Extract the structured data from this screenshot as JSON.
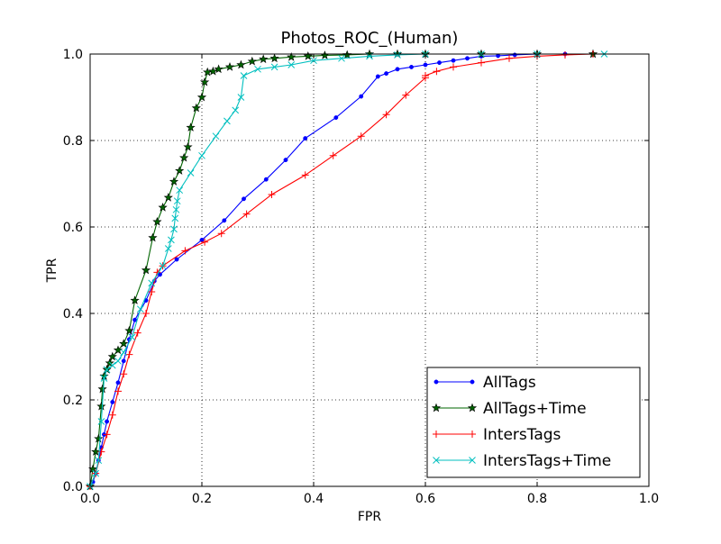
{
  "chart_data": {
    "type": "line",
    "title": "Photos_ROC_(Human)",
    "xlabel": "FPR",
    "ylabel": "TPR",
    "xlim": [
      0,
      1
    ],
    "ylim": [
      0,
      1
    ],
    "xticks": [
      0,
      0.2,
      0.4,
      0.6,
      0.8,
      1.0
    ],
    "yticks": [
      0,
      0.2,
      0.4,
      0.6,
      0.8,
      1.0
    ],
    "xtick_labels": [
      "0.0",
      "0.2",
      "0.4",
      "0.6",
      "0.8",
      "1.0"
    ],
    "ytick_labels": [
      "0.0",
      "0.2",
      "0.4",
      "0.6",
      "0.8",
      "1.0"
    ],
    "grid": true,
    "legend_position": "lower-right",
    "series": [
      {
        "name": "AllTags",
        "color": "#0000ff",
        "marker": "dot",
        "x": [
          0,
          0.005,
          0.01,
          0.015,
          0.02,
          0.025,
          0.03,
          0.04,
          0.05,
          0.06,
          0.07,
          0.08,
          0.1,
          0.115,
          0.125,
          0.155,
          0.2,
          0.24,
          0.275,
          0.315,
          0.35,
          0.385,
          0.44,
          0.485,
          0.515,
          0.53,
          0.55,
          0.575,
          0.6,
          0.625,
          0.65,
          0.675,
          0.7,
          0.73,
          0.76,
          0.8,
          0.85,
          0.9
        ],
        "y": [
          0,
          0.01,
          0.03,
          0.06,
          0.09,
          0.12,
          0.15,
          0.195,
          0.24,
          0.29,
          0.34,
          0.385,
          0.43,
          0.475,
          0.49,
          0.525,
          0.57,
          0.615,
          0.665,
          0.71,
          0.755,
          0.805,
          0.853,
          0.902,
          0.948,
          0.955,
          0.965,
          0.97,
          0.975,
          0.98,
          0.985,
          0.99,
          0.995,
          0.996,
          0.998,
          1.0,
          1.0,
          1.0
        ]
      },
      {
        "name": "AllTags+Time",
        "color": "#006400",
        "marker": "star",
        "x": [
          0,
          0.005,
          0.01,
          0.015,
          0.02,
          0.022,
          0.025,
          0.03,
          0.035,
          0.04,
          0.05,
          0.06,
          0.07,
          0.08,
          0.1,
          0.112,
          0.12,
          0.13,
          0.14,
          0.15,
          0.16,
          0.168,
          0.175,
          0.18,
          0.19,
          0.2,
          0.205,
          0.21,
          0.22,
          0.23,
          0.25,
          0.27,
          0.29,
          0.31,
          0.33,
          0.36,
          0.39,
          0.42,
          0.46,
          0.5,
          0.55,
          0.6,
          0.7,
          0.8,
          0.9
        ],
        "y": [
          0,
          0.04,
          0.08,
          0.11,
          0.185,
          0.225,
          0.255,
          0.27,
          0.285,
          0.3,
          0.315,
          0.33,
          0.36,
          0.43,
          0.5,
          0.575,
          0.612,
          0.645,
          0.668,
          0.705,
          0.73,
          0.76,
          0.785,
          0.83,
          0.875,
          0.9,
          0.935,
          0.958,
          0.96,
          0.965,
          0.97,
          0.975,
          0.983,
          0.988,
          0.99,
          0.993,
          0.995,
          0.997,
          0.998,
          1.0,
          1.0,
          1.0,
          1.0,
          1.0,
          1.0
        ]
      },
      {
        "name": "IntersTags",
        "color": "#ff0000",
        "marker": "plus",
        "x": [
          0,
          0.01,
          0.02,
          0.03,
          0.04,
          0.05,
          0.06,
          0.07,
          0.085,
          0.1,
          0.11,
          0.12,
          0.13,
          0.17,
          0.205,
          0.235,
          0.28,
          0.325,
          0.385,
          0.435,
          0.485,
          0.53,
          0.565,
          0.6,
          0.6,
          0.62,
          0.65,
          0.7,
          0.75,
          0.8,
          0.85,
          0.9
        ],
        "y": [
          0,
          0.03,
          0.08,
          0.12,
          0.165,
          0.22,
          0.26,
          0.305,
          0.355,
          0.4,
          0.45,
          0.495,
          0.51,
          0.545,
          0.565,
          0.585,
          0.63,
          0.675,
          0.72,
          0.765,
          0.81,
          0.86,
          0.905,
          0.945,
          0.95,
          0.96,
          0.97,
          0.98,
          0.99,
          0.995,
          0.998,
          1.0
        ]
      },
      {
        "name": "IntersTags+Time",
        "color": "#00bfbf",
        "marker": "x",
        "x": [
          0,
          0.01,
          0.015,
          0.02,
          0.025,
          0.03,
          0.04,
          0.05,
          0.06,
          0.075,
          0.09,
          0.11,
          0.13,
          0.14,
          0.145,
          0.15,
          0.152,
          0.154,
          0.156,
          0.16,
          0.18,
          0.2,
          0.225,
          0.245,
          0.26,
          0.27,
          0.275,
          0.3,
          0.33,
          0.36,
          0.4,
          0.45,
          0.5,
          0.55,
          0.6,
          0.7,
          0.8,
          0.92
        ],
        "y": [
          0,
          0.03,
          0.06,
          0.15,
          0.25,
          0.27,
          0.28,
          0.29,
          0.31,
          0.345,
          0.41,
          0.47,
          0.51,
          0.55,
          0.57,
          0.595,
          0.62,
          0.64,
          0.66,
          0.685,
          0.725,
          0.765,
          0.81,
          0.845,
          0.87,
          0.9,
          0.95,
          0.965,
          0.97,
          0.975,
          0.985,
          0.99,
          0.995,
          0.998,
          1.0,
          1.0,
          1.0,
          1.0
        ]
      }
    ]
  }
}
